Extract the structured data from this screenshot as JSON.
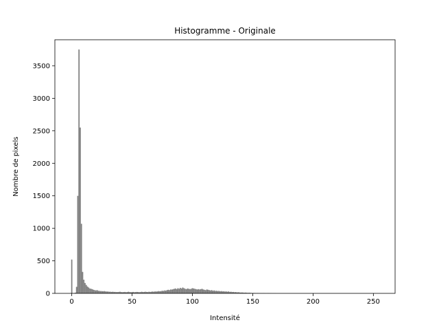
{
  "chart_data": {
    "type": "bar",
    "title": "Histogramme - Originale",
    "xlabel": "Intensité",
    "ylabel": "Nombre de pixels",
    "xlim": [
      -14,
      268
    ],
    "ylim": [
      0,
      3900
    ],
    "x_ticks": [
      0,
      50,
      100,
      150,
      200,
      250
    ],
    "y_ticks": [
      0,
      500,
      1000,
      1500,
      2000,
      2500,
      3000,
      3500
    ],
    "grid": false,
    "bar_color": "#808080",
    "bin_width": 1,
    "x": [
      0,
      1,
      2,
      3,
      4,
      5,
      6,
      7,
      8,
      9,
      10,
      11,
      12,
      13,
      14,
      15,
      16,
      17,
      18,
      19,
      20,
      21,
      22,
      23,
      24,
      25,
      26,
      27,
      28,
      29,
      30,
      31,
      32,
      33,
      34,
      35,
      36,
      37,
      38,
      39,
      40,
      41,
      42,
      43,
      44,
      45,
      46,
      47,
      48,
      49,
      50,
      51,
      52,
      53,
      54,
      55,
      56,
      57,
      58,
      59,
      60,
      61,
      62,
      63,
      64,
      65,
      66,
      67,
      68,
      69,
      70,
      71,
      72,
      73,
      74,
      75,
      76,
      77,
      78,
      79,
      80,
      81,
      82,
      83,
      84,
      85,
      86,
      87,
      88,
      89,
      90,
      91,
      92,
      93,
      94,
      95,
      96,
      97,
      98,
      99,
      100,
      101,
      102,
      103,
      104,
      105,
      106,
      107,
      108,
      109,
      110,
      111,
      112,
      113,
      114,
      115,
      116,
      117,
      118,
      119,
      120,
      121,
      122,
      123,
      124,
      125,
      126,
      127,
      128,
      129,
      130,
      131,
      132,
      133,
      134,
      135,
      136,
      137,
      138,
      139,
      140,
      141,
      142,
      143,
      144,
      145,
      146,
      147,
      148,
      149,
      150,
      151,
      152,
      153,
      154,
      155,
      156,
      157,
      158,
      159,
      160,
      161,
      162,
      163,
      164,
      165,
      166,
      167,
      168,
      169,
      170
    ],
    "values": [
      520,
      0,
      5,
      10,
      100,
      1500,
      3750,
      2550,
      1070,
      330,
      210,
      160,
      130,
      105,
      90,
      75,
      70,
      65,
      55,
      50,
      45,
      50,
      40,
      38,
      35,
      35,
      32,
      35,
      30,
      28,
      28,
      25,
      25,
      22,
      25,
      22,
      22,
      20,
      20,
      22,
      25,
      20,
      18,
      20,
      22,
      18,
      20,
      25,
      20,
      18,
      20,
      22,
      18,
      20,
      22,
      20,
      18,
      20,
      25,
      20,
      22,
      25,
      22,
      20,
      25,
      22,
      25,
      28,
      25,
      30,
      28,
      30,
      35,
      32,
      35,
      40,
      38,
      45,
      42,
      50,
      55,
      50,
      60,
      58,
      65,
      70,
      75,
      65,
      80,
      70,
      85,
      75,
      90,
      80,
      70,
      65,
      75,
      70,
      65,
      70,
      80,
      75,
      70,
      65,
      60,
      65,
      60,
      65,
      70,
      60,
      55,
      50,
      60,
      55,
      50,
      45,
      50,
      40,
      45,
      38,
      40,
      35,
      38,
      32,
      35,
      30,
      32,
      28,
      30,
      25,
      30,
      22,
      25,
      20,
      22,
      18,
      20,
      15,
      18,
      15,
      12,
      14,
      12,
      10,
      12,
      10,
      8,
      10,
      8,
      6,
      5,
      6,
      5,
      4,
      5,
      4,
      3,
      4,
      3,
      4,
      3,
      2,
      2,
      3,
      2,
      2,
      1,
      1,
      1,
      1,
      0
    ]
  }
}
